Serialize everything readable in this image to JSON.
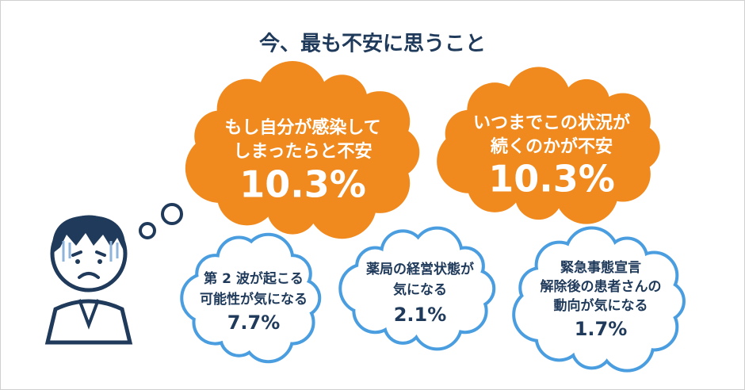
{
  "title": "今、最も不安に思うこと",
  "items": [
    {
      "lines": [
        "もし自分が感染して",
        "しまったらと不安"
      ],
      "value": "10.3%"
    },
    {
      "lines": [
        "いつまでこの状況が",
        "続くのかが不安"
      ],
      "value": "10.3%"
    },
    {
      "lines": [
        "第 2 波が起こる",
        "可能性が気になる"
      ],
      "value": "7.7%"
    },
    {
      "lines": [
        "薬局の経営状態が",
        "気になる"
      ],
      "value": "2.1%"
    },
    {
      "lines": [
        "緊急事態宣言",
        "解除後の患者さんの",
        "動向が気になる"
      ],
      "value": "1.7%"
    }
  ]
}
